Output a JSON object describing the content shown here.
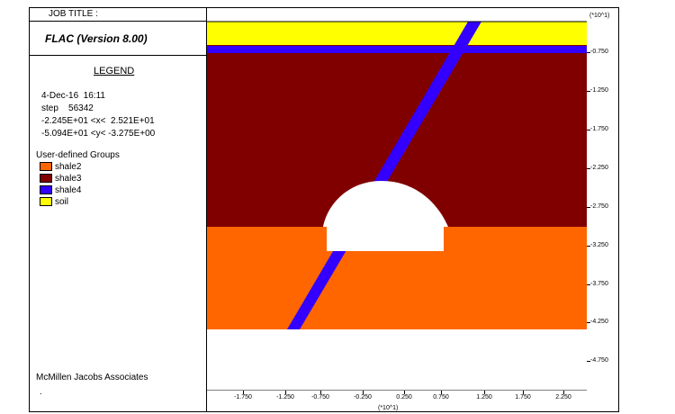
{
  "header": {
    "job_title": "JOB TITLE :",
    "program": "FLAC (Version 8.00)"
  },
  "legend": {
    "title": "LEGEND",
    "date_time": "4-Dec-16  16:11",
    "step": "step    56342",
    "x_range": "-2.245E+01 <x<  2.521E+01",
    "y_range": "-5.094E+01 <y< -3.275E+00",
    "groups_title": "User-defined Groups",
    "groups": [
      {
        "label": "shale2",
        "color": "#ff6600"
      },
      {
        "label": "shale3",
        "color": "#800000"
      },
      {
        "label": "shale4",
        "color": "#3300ff"
      },
      {
        "label": "soil",
        "color": "#ffff00"
      }
    ]
  },
  "footer": {
    "company": "McMillen Jacobs Associates",
    "dot": "."
  },
  "axes": {
    "y_scale_note": "(*10^1)",
    "x_scale_note": "(*10^1)",
    "y_ticks": [
      "-0.750",
      "-1.250",
      "-1.750",
      "-2.250",
      "-2.750",
      "-3.250",
      "-3.750",
      "-4.250",
      "-4.750"
    ],
    "x_ticks": [
      "-1.750",
      "-1.250",
      "-0.750",
      "-0.250",
      "0.250",
      "0.750",
      "1.250",
      "1.750",
      "2.250"
    ]
  }
}
